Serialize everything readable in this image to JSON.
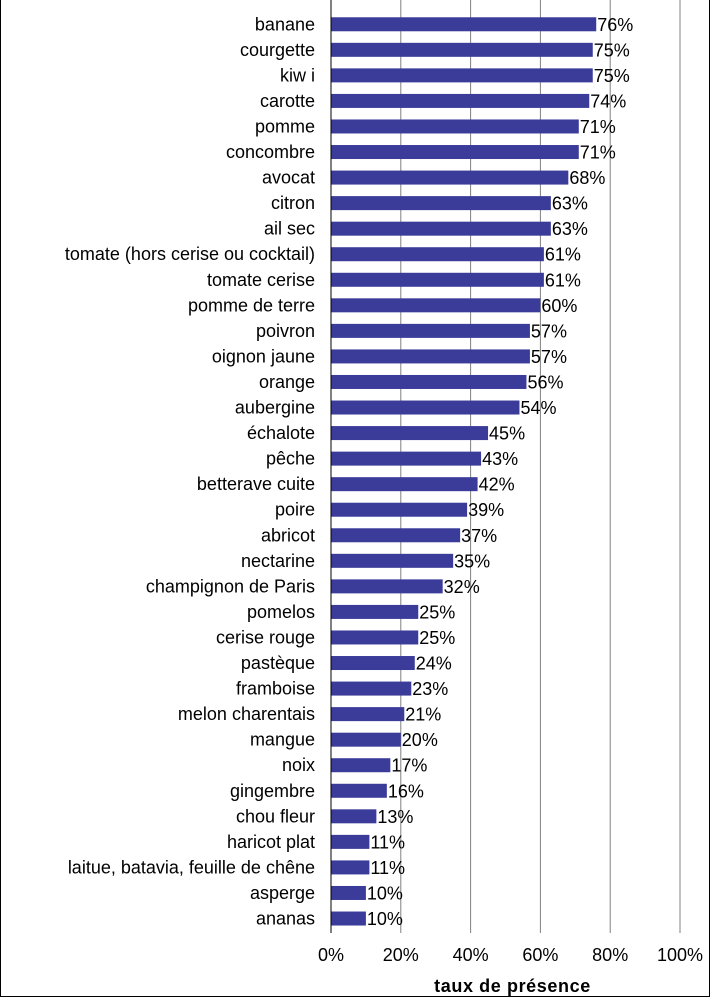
{
  "chart_data": {
    "type": "bar",
    "orientation": "horizontal",
    "categories": [
      "banane",
      "courgette",
      "kiw i",
      "carotte",
      "pomme",
      "concombre",
      "avocat",
      "citron",
      "ail sec",
      "tomate (hors cerise ou cocktail)",
      "tomate cerise",
      "pomme de terre",
      "poivron",
      "oignon jaune",
      "orange",
      "aubergine",
      "échalote",
      "pêche",
      "betterave cuite",
      "poire",
      "abricot",
      "nectarine",
      "champignon de Paris",
      "pomelos",
      "cerise rouge",
      "pastèque",
      "framboise",
      "melon charentais",
      "mangue",
      "noix",
      "gingembre",
      "chou fleur",
      "haricot plat",
      "laitue, batavia, feuille de chêne",
      "asperge",
      "ananas"
    ],
    "values": [
      76,
      75,
      75,
      74,
      71,
      71,
      68,
      63,
      63,
      61,
      61,
      60,
      57,
      57,
      56,
      54,
      45,
      43,
      42,
      39,
      37,
      35,
      32,
      25,
      25,
      24,
      23,
      21,
      20,
      17,
      16,
      13,
      11,
      11,
      10,
      10
    ],
    "value_labels": [
      "76%",
      "75%",
      "75%",
      "74%",
      "71%",
      "71%",
      "68%",
      "63%",
      "63%",
      "61%",
      "61%",
      "60%",
      "57%",
      "57%",
      "56%",
      "54%",
      "45%",
      "43%",
      "42%",
      "39%",
      "37%",
      "35%",
      "32%",
      "25%",
      "25%",
      "24%",
      "23%",
      "21%",
      "20%",
      "17%",
      "16%",
      "13%",
      "11%",
      "11%",
      "10%",
      "10%"
    ],
    "xlabel": "taux de présence",
    "xticks": [
      "0%",
      "20%",
      "40%",
      "60%",
      "80%",
      "100%"
    ],
    "xlim": [
      0,
      100
    ],
    "grid": "vertical",
    "bar_color": "#3b3b9a",
    "grid_color": "#808080"
  }
}
